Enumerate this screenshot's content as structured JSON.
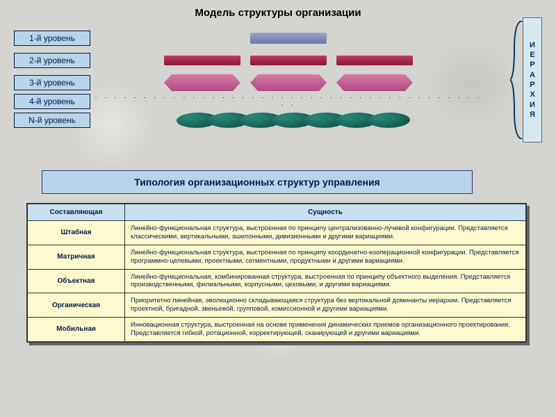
{
  "title": "Модель структуры организации",
  "hierarchy_word": "ИЕРАРХИЯ",
  "levels": [
    {
      "label": "1-й уровень",
      "shape": "bar1",
      "count": 1
    },
    {
      "label": "2-й уровень",
      "shape": "bar2",
      "count": 3
    },
    {
      "label": "3-й уровень",
      "shape": "rhomb",
      "count": 3
    },
    {
      "label": "4-й уровень",
      "shape": "dots",
      "count": 1
    },
    {
      "label": "N-й уровень",
      "shape": "blob",
      "count": 7
    }
  ],
  "subtitle": "Типология организационных структур управления",
  "table": {
    "headers": [
      "Составляющая",
      "Сущность"
    ],
    "rows": [
      [
        "Штабная",
        "Линейно-функциональная структура, выстроенная по принципу централизованно-лучевой конфигурации. Представляется классическими, вертикальными, эшелонными, дивизионными и другими вариациями."
      ],
      [
        "Матричная",
        "Линейно-функциональная структура, выстроенная по принципу координатно-кооперационной конфигурации. Представляется программно-целевыми, проектными, сегментными, продуктными и другими вариациями."
      ],
      [
        "Объектная",
        "Линейно-функциональная, комбинированная структура, выстроенная по принципу объектного выделения. Представляется производственными, филиальными, корпусными, цеховыми, и другими вариациями."
      ],
      [
        "Органическая",
        "Приоритетно линейная, эволюционно складывающаяся структура без вертикальной доминанты иерархии. Представляется проектной, бригадной, звеньевой, групповой, комиссионной и другими вариациями."
      ],
      [
        "Мобильная",
        "Инновационная структура, выстроенная на основе применения динамических приемов организационного проектирования. Представляется гибкой, ротационной, корректирующей, сканирующей и другими вариациями."
      ]
    ]
  },
  "colors": {
    "badge_bg": "#b8d4e8",
    "badge_text": "#001b4d",
    "header_bg": "#c8e0f0",
    "cell_bg": "#fffacd",
    "bar1": "#6b7aa8",
    "bar2": "#8a1838",
    "rhomb": "#b04a80",
    "blob": "#0a4a3a"
  }
}
